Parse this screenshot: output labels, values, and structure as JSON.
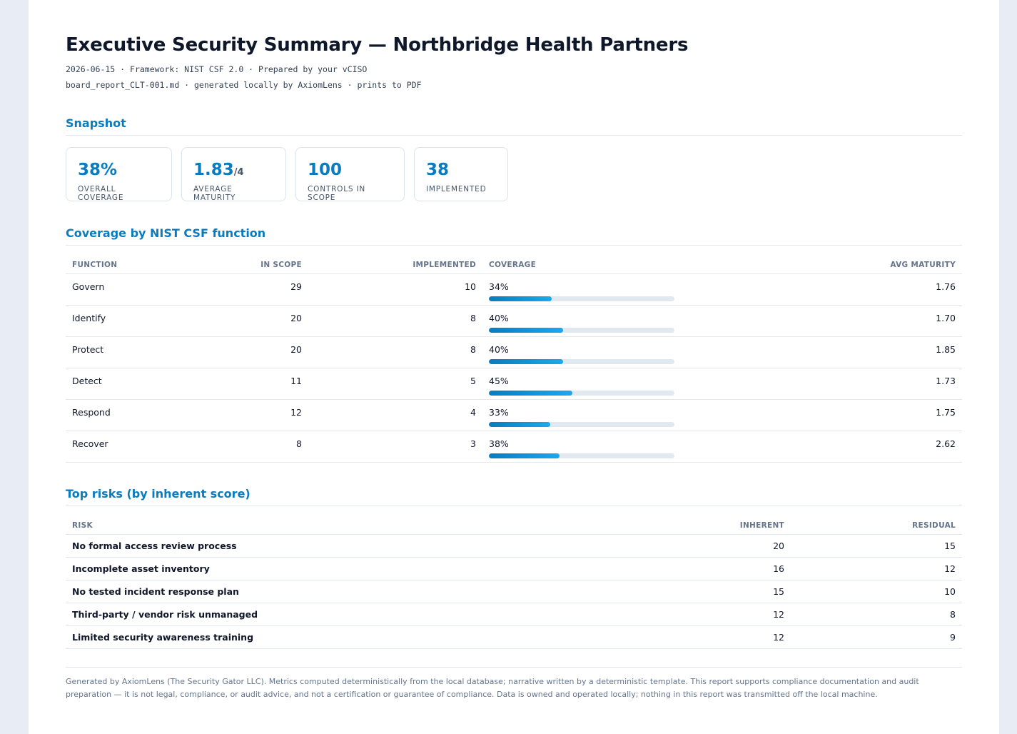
{
  "report": {
    "title": "Executive Security Summary — Northbridge Health Partners",
    "meta_line1": "2026-06-15 · Framework: NIST CSF 2.0 · Prepared by your vCISO",
    "meta_line2": "board_report_CLT-001.md · generated locally by AxiomLens · prints to PDF"
  },
  "snapshot": {
    "title": "Snapshot",
    "cards": [
      {
        "value": "38%",
        "unit": "",
        "label": "OVERALL COVERAGE"
      },
      {
        "value": "1.83",
        "unit": "/4",
        "label": "AVERAGE MATURITY"
      },
      {
        "value": "100",
        "unit": "",
        "label": "CONTROLS IN SCOPE"
      },
      {
        "value": "38",
        "unit": "",
        "label": "IMPLEMENTED"
      }
    ]
  },
  "coverage": {
    "title": "Coverage by NIST CSF function",
    "headers": {
      "function": "FUNCTION",
      "in_scope": "IN SCOPE",
      "implemented": "IMPLEMENTED",
      "coverage": "COVERAGE",
      "avg_maturity": "AVG MATURITY"
    },
    "rows": [
      {
        "function": "Govern",
        "in_scope": "29",
        "implemented": "10",
        "coverage": "34%",
        "coverage_pct": 34,
        "avg_maturity": "1.76"
      },
      {
        "function": "Identify",
        "in_scope": "20",
        "implemented": "8",
        "coverage": "40%",
        "coverage_pct": 40,
        "avg_maturity": "1.70"
      },
      {
        "function": "Protect",
        "in_scope": "20",
        "implemented": "8",
        "coverage": "40%",
        "coverage_pct": 40,
        "avg_maturity": "1.85"
      },
      {
        "function": "Detect",
        "in_scope": "11",
        "implemented": "5",
        "coverage": "45%",
        "coverage_pct": 45,
        "avg_maturity": "1.73"
      },
      {
        "function": "Respond",
        "in_scope": "12",
        "implemented": "4",
        "coverage": "33%",
        "coverage_pct": 33,
        "avg_maturity": "1.75"
      },
      {
        "function": "Recover",
        "in_scope": "8",
        "implemented": "3",
        "coverage": "38%",
        "coverage_pct": 38,
        "avg_maturity": "2.62"
      }
    ]
  },
  "risks": {
    "title": "Top risks (by inherent score)",
    "headers": {
      "risk": "RISK",
      "inherent": "INHERENT",
      "residual": "RESIDUAL"
    },
    "rows": [
      {
        "risk": "No formal access review process",
        "inherent": "20",
        "residual": "15"
      },
      {
        "risk": "Incomplete asset inventory",
        "inherent": "16",
        "residual": "12"
      },
      {
        "risk": "No tested incident response plan",
        "inherent": "15",
        "residual": "10"
      },
      {
        "risk": "Third-party / vendor risk unmanaged",
        "inherent": "12",
        "residual": "8"
      },
      {
        "risk": "Limited security awareness training",
        "inherent": "12",
        "residual": "9"
      }
    ]
  },
  "footer": "Generated by AxiomLens (The Security Gator LLC). Metrics computed deterministically from the local database; narrative written by a deterministic template. This report supports compliance documentation and audit preparation — it is not legal, compliance, or audit advice, and not a certification or guarantee of compliance. Data is owned and operated locally; nothing in this report was transmitted off the local machine."
}
